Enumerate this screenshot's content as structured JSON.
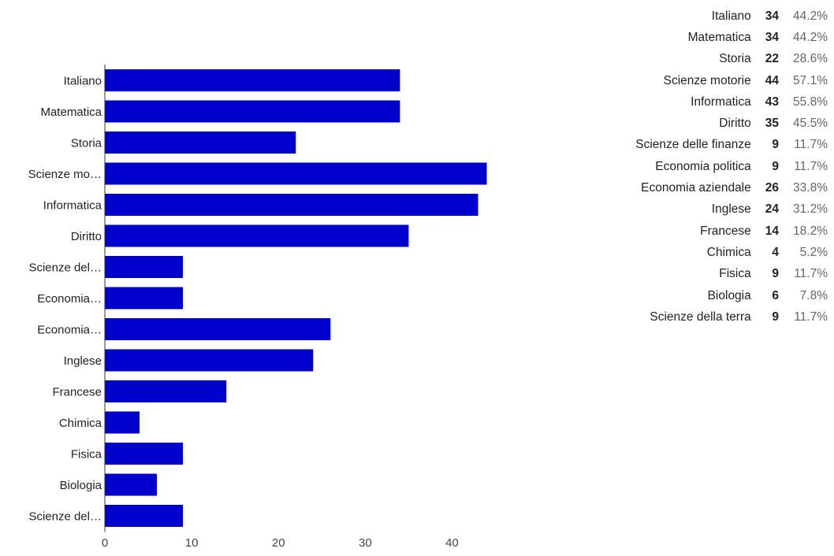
{
  "chart_data": {
    "type": "bar",
    "orientation": "horizontal",
    "categories": [
      "Italiano",
      "Matematica",
      "Storia",
      "Scienze motorie",
      "Informatica",
      "Diritto",
      "Scienze delle finanze",
      "Economia politica",
      "Economia aziendale",
      "Inglese",
      "Francese",
      "Chimica",
      "Fisica",
      "Biologia",
      "Scienze della terra"
    ],
    "category_labels_truncated": [
      "Italiano",
      "Matematica",
      "Storia",
      "Scienze mo…",
      "Informatica",
      "Diritto",
      "Scienze del…",
      "Economia…",
      "Economia…",
      "Inglese",
      "Francese",
      "Chimica",
      "Fisica",
      "Biologia",
      "Scienze del…"
    ],
    "values": [
      34,
      34,
      22,
      44,
      43,
      35,
      9,
      9,
      26,
      24,
      14,
      4,
      9,
      6,
      9
    ],
    "percentages": [
      "44.2%",
      "44.2%",
      "28.6%",
      "57.1%",
      "55.8%",
      "45.5%",
      "11.7%",
      "11.7%",
      "33.8%",
      "31.2%",
      "18.2%",
      "5.2%",
      "11.7%",
      "7.8%",
      "11.7%"
    ],
    "xlim": [
      0,
      44.5
    ],
    "xticks": [
      "0",
      "10",
      "20",
      "30",
      "40"
    ],
    "bar_color": "#0000cc",
    "grid": false,
    "legend": "none"
  }
}
